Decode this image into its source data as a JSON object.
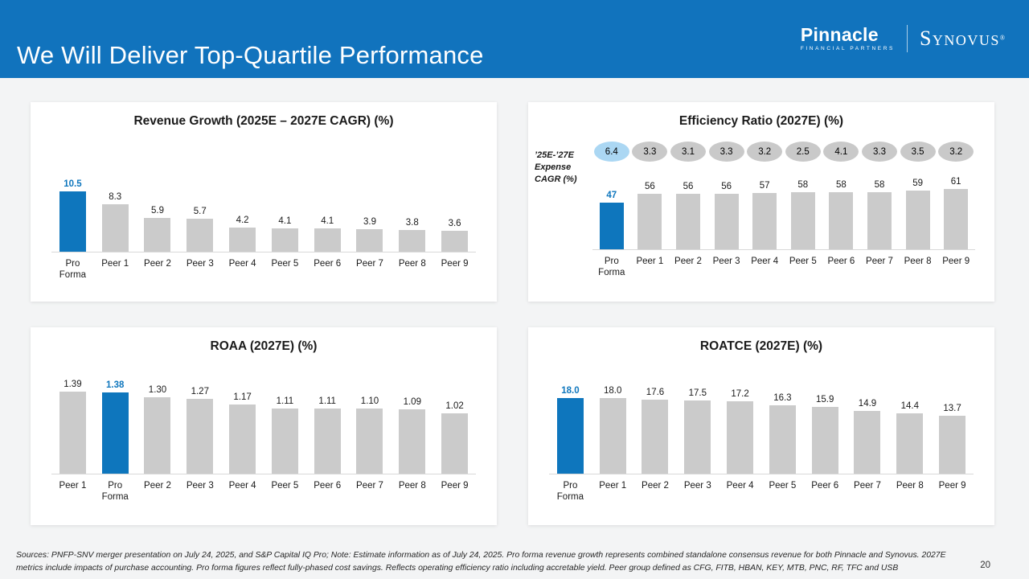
{
  "header": {
    "title": "We Will Deliver Top-Quartile Performance",
    "logo": {
      "pinnacle_name": "Pinnacle",
      "pinnacle_tagline": "FINANCIAL PARTNERS",
      "synovus_name": "Synovus",
      "synovus_registered": "®"
    }
  },
  "colors": {
    "header_bg": "#1173bd",
    "highlight_blue": "#0e76bd",
    "bar_gray": "#cbcbcb",
    "oval_blue": "#abd7f3",
    "oval_gray": "#c9c9c9"
  },
  "chart_data": [
    {
      "id": "revenue-growth",
      "type": "bar",
      "title": "Revenue Growth (2025E – 2027E CAGR) (%)",
      "categories": [
        "Pro\nForma",
        "Peer 1",
        "Peer 2",
        "Peer 3",
        "Peer 4",
        "Peer 5",
        "Peer 6",
        "Peer 7",
        "Peer 8",
        "Peer 9"
      ],
      "values": [
        10.5,
        8.3,
        5.9,
        5.7,
        4.2,
        4.1,
        4.1,
        3.9,
        3.8,
        3.6
      ],
      "labels": [
        "10.5",
        "8.3",
        "5.9",
        "5.7",
        "4.2",
        "4.1",
        "4.1",
        "3.9",
        "3.8",
        "3.6"
      ],
      "highlight_index": 0,
      "ylim": [
        0,
        10.5
      ],
      "grid": false,
      "legend": "none"
    },
    {
      "id": "efficiency-ratio",
      "type": "bar",
      "title": "Efficiency Ratio (2027E) (%)",
      "categories": [
        "Pro\nForma",
        "Peer 1",
        "Peer 2",
        "Peer 3",
        "Peer 4",
        "Peer 5",
        "Peer 6",
        "Peer 7",
        "Peer 8",
        "Peer 9"
      ],
      "values": [
        47,
        56,
        56,
        56,
        57,
        58,
        58,
        58,
        59,
        61
      ],
      "labels": [
        "47",
        "56",
        "56",
        "56",
        "57",
        "58",
        "58",
        "58",
        "59",
        "61"
      ],
      "highlight_index": 0,
      "ylim": [
        0,
        61
      ],
      "grid": false,
      "legend": "none",
      "annotation_label": "’25E-’27E\nExpense\nCAGR (%)",
      "annotations": [
        "6.4",
        "3.3",
        "3.1",
        "3.3",
        "3.2",
        "2.5",
        "4.1",
        "3.3",
        "3.5",
        "3.2"
      ],
      "annotation_highlight_index": 0
    },
    {
      "id": "roaa",
      "type": "bar",
      "title": "ROAA (2027E) (%)",
      "categories": [
        "Peer 1",
        "Pro\nForma",
        "Peer 2",
        "Peer 3",
        "Peer 4",
        "Peer 5",
        "Peer 6",
        "Peer 7",
        "Peer 8",
        "Peer 9"
      ],
      "values": [
        1.39,
        1.38,
        1.3,
        1.27,
        1.17,
        1.11,
        1.11,
        1.1,
        1.09,
        1.02
      ],
      "labels": [
        "1.39",
        "1.38",
        "1.30",
        "1.27",
        "1.17",
        "1.11",
        "1.11",
        "1.10",
        "1.09",
        "1.02"
      ],
      "highlight_index": 1,
      "ylim": [
        0,
        1.39
      ],
      "grid": false,
      "legend": "none"
    },
    {
      "id": "roatce",
      "type": "bar",
      "title": "ROATCE (2027E) (%)",
      "categories": [
        "Pro\nForma",
        "Peer 1",
        "Peer 2",
        "Peer 3",
        "Peer 4",
        "Peer 5",
        "Peer 6",
        "Peer 7",
        "Peer 8",
        "Peer 9"
      ],
      "values": [
        18.0,
        18.0,
        17.6,
        17.5,
        17.2,
        16.3,
        15.9,
        14.9,
        14.4,
        13.7
      ],
      "labels": [
        "18.0",
        "18.0",
        "17.6",
        "17.5",
        "17.2",
        "16.3",
        "15.9",
        "14.9",
        "14.4",
        "13.7"
      ],
      "highlight_index": 0,
      "ylim": [
        0,
        18
      ],
      "grid": false,
      "legend": "none"
    }
  ],
  "footer": {
    "line1": "Sources: PNFP-SNV merger presentation on July 24, 2025, and S&P Capital IQ Pro; Note: Estimate information as of July 24, 2025. Pro forma revenue growth represents combined standalone consensus revenue for both Pinnacle and Synovus. 2027E",
    "line2": "metrics include impacts of purchase accounting. Pro forma figures reflect fully-phased cost savings. Reflects operating efficiency ratio including accretable yield.  Peer group defined as CFG, FITB, HBAN, KEY, MTB, PNC, RF, TFC and USB",
    "page_number": "20"
  }
}
